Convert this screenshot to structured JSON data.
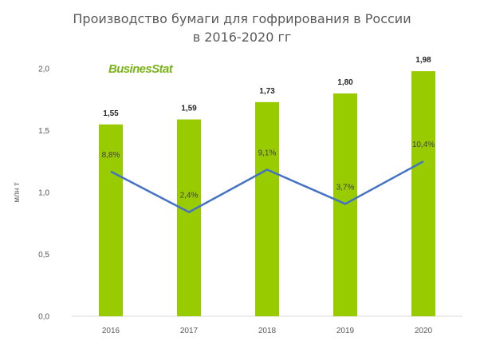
{
  "chart_data": {
    "type": "bar",
    "title_line1": "Производство бумаги для гофрирования в России",
    "title_line2": "в 2016-2020 гг",
    "logo": "BusinesStat",
    "ylabel": "млн т",
    "categories": [
      "2016",
      "2017",
      "2018",
      "2019",
      "2020"
    ],
    "ylim": [
      0,
      2
    ],
    "yticks": [
      "0,0",
      "0,5",
      "1,0",
      "1,5",
      "2,0"
    ],
    "series": [
      {
        "type": "bar",
        "values": [
          1.55,
          1.59,
          1.73,
          1.8,
          1.98
        ],
        "labels": [
          "1,55",
          "1,59",
          "1,73",
          "1,80",
          "1,98"
        ],
        "color": "#99cc00"
      },
      {
        "type": "line",
        "values": [
          8.8,
          2.4,
          9.1,
          3.7,
          10.4
        ],
        "labels": [
          "8,8%",
          "2,4%",
          "9,1%",
          "3,7%",
          "10,4%"
        ],
        "color": "#4472c4",
        "secondary_axis": true,
        "secondary_axis_shown": false
      }
    ],
    "grid": false,
    "legend": "none"
  }
}
